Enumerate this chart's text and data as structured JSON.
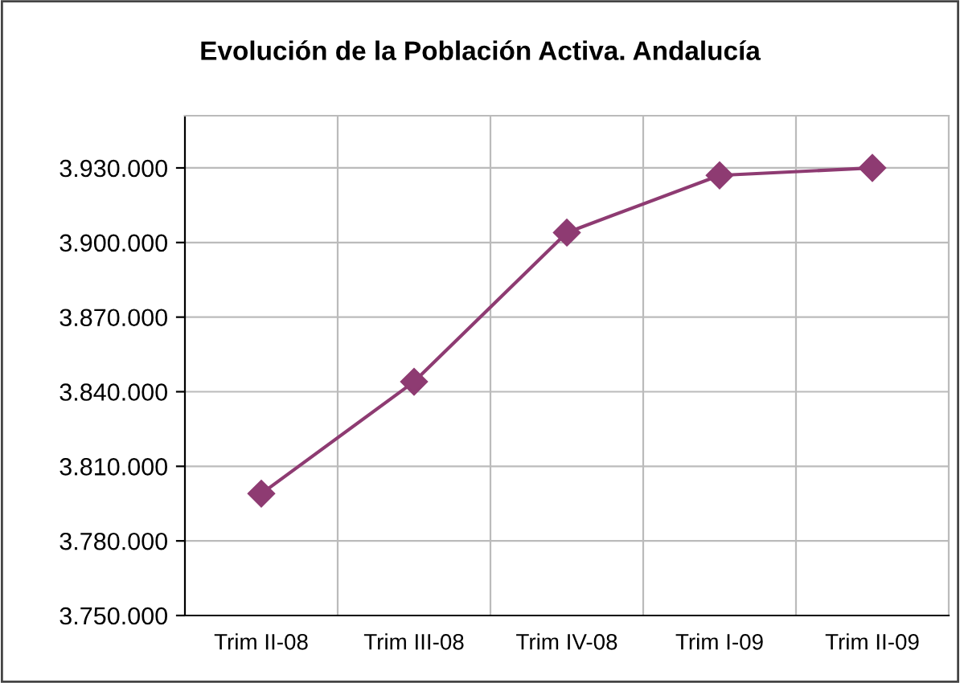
{
  "chart_data": {
    "type": "line",
    "title": "Evolución de la Población Activa. Andalucía",
    "categories": [
      "Trim II-08",
      "Trim III-08",
      "Trim IV-08",
      "Trim I-09",
      "Trim II-09"
    ],
    "series": [
      {
        "color": "#8e3b72",
        "values": [
          3799000,
          3844000,
          3904000,
          3927000,
          3930000
        ]
      }
    ],
    "ylim": [
      3750000,
      3951000
    ],
    "yticks": [
      {
        "value": 3750000,
        "label": "3.750.000"
      },
      {
        "value": 3780000,
        "label": "3.780.000"
      },
      {
        "value": 3810000,
        "label": "3.810.000"
      },
      {
        "value": 3840000,
        "label": "3.840.000"
      },
      {
        "value": 3870000,
        "label": "3.870.000"
      },
      {
        "value": 3900000,
        "label": "3.900.000"
      },
      {
        "value": 3930000,
        "label": "3.930.000"
      }
    ],
    "grid": true,
    "legend": false,
    "marker": "diamond",
    "line_style": "solid"
  }
}
